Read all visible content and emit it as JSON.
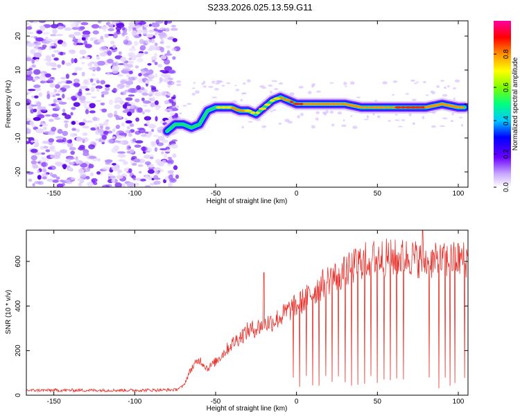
{
  "title": "S233.2026.025.13.59.G11",
  "chart_data": [
    {
      "type": "heatmap",
      "xlabel": "Height of straight line (km)",
      "ylabel": "Frequency (Hz)",
      "xlim": [
        -167,
        106
      ],
      "ylim": [
        -24.5,
        24.5
      ],
      "xticks": [
        -150,
        -100,
        -50,
        0,
        50,
        100
      ],
      "yticks": [
        -20,
        -10,
        0,
        10,
        20
      ],
      "colorbar": {
        "label": "Normalized spectral amplitude",
        "range": [
          0,
          1
        ],
        "ticks": [
          "0.0",
          "0.2",
          "0.4",
          "0.6",
          "0.8"
        ]
      },
      "noise_region_x": [
        -167,
        -78
      ],
      "ridge": {
        "x": [
          -80,
          -75,
          -70,
          -65,
          -60,
          -55,
          -50,
          -45,
          -40,
          -35,
          -30,
          -25,
          -20,
          -15,
          -10,
          -5,
          0,
          10,
          20,
          30,
          40,
          50,
          60,
          70,
          80,
          90,
          100,
          104
        ],
        "y": [
          -8,
          -6,
          -6,
          -7,
          -6,
          -2,
          -1,
          -1,
          -1,
          -2,
          -2,
          -3,
          -1,
          1,
          2,
          1,
          0,
          0,
          0,
          0,
          -1,
          -1,
          -1,
          -1,
          -1,
          0,
          -1,
          -1
        ],
        "amplitude": [
          0.4,
          0.5,
          0.6,
          0.5,
          0.5,
          0.6,
          0.7,
          0.75,
          0.8,
          0.9,
          0.7,
          0.8,
          0.7,
          0.75,
          0.8,
          0.9,
          0.95,
          0.85,
          0.85,
          0.85,
          0.8,
          0.85,
          0.9,
          0.95,
          0.9,
          0.85,
          0.85,
          0.9
        ]
      }
    },
    {
      "type": "line",
      "xlabel": "Height of straight line (km)",
      "ylabel": "SNR (10 * v/v)",
      "xlim": [
        -167,
        106
      ],
      "ylim": [
        0,
        740
      ],
      "xticks": [
        -150,
        -100,
        -50,
        0,
        50,
        100
      ],
      "yticks": [
        0,
        200,
        400,
        600
      ],
      "color": "#e8302a",
      "envelope": {
        "x": [
          -167,
          -150,
          -100,
          -75,
          -70,
          -65,
          -60,
          -55,
          -50,
          -45,
          -40,
          -35,
          -30,
          -25,
          -20,
          -15,
          -10,
          -5,
          0,
          10,
          20,
          30,
          40,
          50,
          60,
          70,
          80,
          90,
          100,
          106
        ],
        "y": [
          22,
          22,
          22,
          24,
          40,
          120,
          160,
          120,
          150,
          190,
          230,
          260,
          290,
          300,
          320,
          330,
          350,
          380,
          400,
          460,
          520,
          550,
          600,
          620,
          615,
          620,
          600,
          600,
          610,
          610
        ]
      },
      "peaks": [
        {
          "x": -20,
          "y": 550
        },
        {
          "x": 78,
          "y": 740
        }
      ],
      "dropouts_x": [
        -2,
        2,
        6,
        10,
        14,
        18,
        22,
        26,
        30,
        34,
        38,
        42,
        46,
        50,
        54,
        58,
        62,
        66,
        82,
        88,
        92,
        95,
        98,
        104
      ]
    }
  ]
}
